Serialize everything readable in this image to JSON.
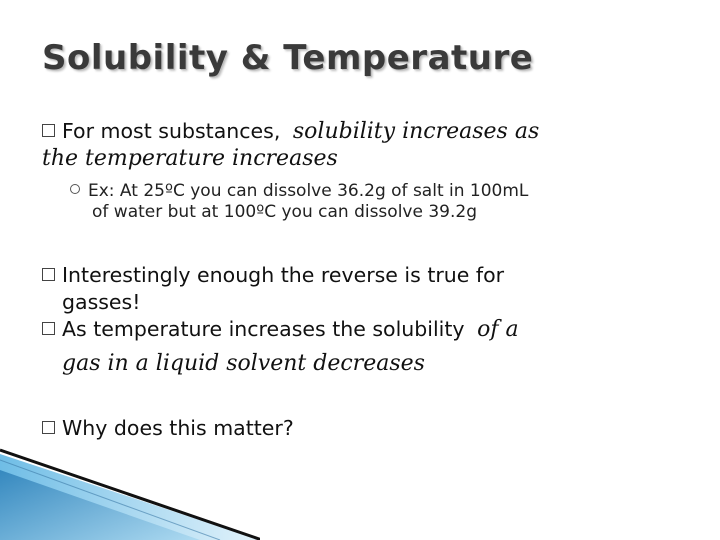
{
  "slide": {
    "title": "Solubility & Temperature",
    "bullet1": {
      "marker": "",
      "plain": "For most substances,",
      "emphasis1": "solubility increases as",
      "emphasis2": "the temperature increases"
    },
    "sub1": {
      "line1": "Ex: At 25ºC you can dissolve 36.2g of salt in 100mL",
      "line2": "of water but at 100ºC you can dissolve 39.2g"
    },
    "bullet2": {
      "line1": "Interestingly enough the reverse is true for",
      "line2": "gasses!"
    },
    "bullet3": {
      "plain": "As temperature increases the solubility",
      "emphasis1": "of a",
      "emphasis2": "gas in a liquid solvent decreases"
    },
    "bullet4": {
      "text": "Why does this matter?"
    },
    "colors": {
      "title": "#3a3a3a",
      "accent_blue": "#4aa3d6"
    }
  }
}
